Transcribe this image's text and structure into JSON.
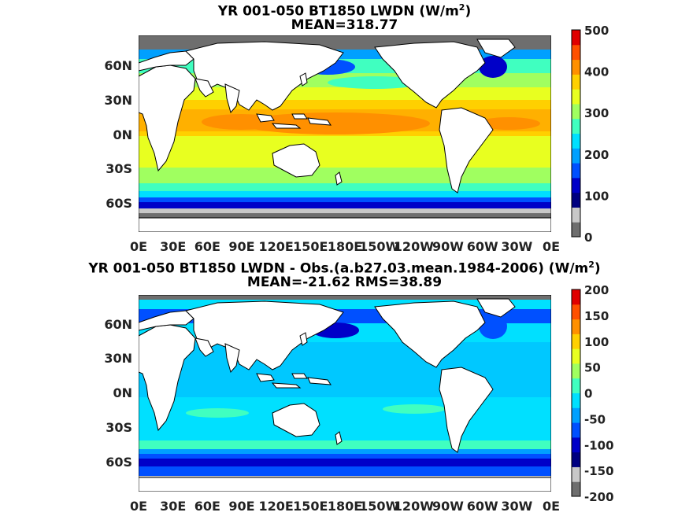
{
  "panels": [
    {
      "title_main": "YR 001-050 BT1850 LWDN (W/m",
      "title_sup": "2",
      "title_close": ")",
      "subtitle": "MEAN=318.77",
      "ylabels": [
        "60N",
        "30N",
        "0N",
        "30S",
        "60S"
      ],
      "xlabels": [
        "0E",
        "30E",
        "60E",
        "90E",
        "120E",
        "150E",
        "180E",
        "150W",
        "120W",
        "90W",
        "60W",
        "30W",
        "0E"
      ],
      "colorbar_ticks": [
        "500",
        "400",
        "300",
        "200",
        "100",
        "0"
      ],
      "colorbar_range": [
        0,
        500
      ],
      "colors": [
        "#6e6e6e",
        "#c8c8c8",
        "#000080",
        "#0000c8",
        "#0050ff",
        "#00a0ff",
        "#00e0ff",
        "#40ffc0",
        "#a0ff60",
        "#e8ff20",
        "#ffd000",
        "#ff9000",
        "#ff5000",
        "#e00000"
      ]
    },
    {
      "title_main": "YR 001-050 BT1850 LWDN - Obs.(a.b27.03.mean.1984-2006) (W/m",
      "title_sup": "2",
      "title_close": ")",
      "subtitle": "MEAN=-21.62 RMS=38.89",
      "ylabels": [
        "60N",
        "30N",
        "0N",
        "30S",
        "60S"
      ],
      "xlabels": [
        "0E",
        "30E",
        "60E",
        "90E",
        "120E",
        "150E",
        "180E",
        "150W",
        "120W",
        "90W",
        "60W",
        "30W",
        "0E"
      ],
      "colorbar_ticks": [
        "200",
        "150",
        "100",
        "50",
        "0",
        "-50",
        "-100",
        "-150",
        "-200"
      ],
      "colorbar_range": [
        -200,
        200
      ],
      "colors": [
        "#6e6e6e",
        "#c8c8c8",
        "#000080",
        "#0000c8",
        "#0050ff",
        "#00a0ff",
        "#00e0ff",
        "#40ffc0",
        "#a0ff60",
        "#e8ff20",
        "#ffd000",
        "#ff9000",
        "#ff5000",
        "#e00000"
      ]
    }
  ]
}
